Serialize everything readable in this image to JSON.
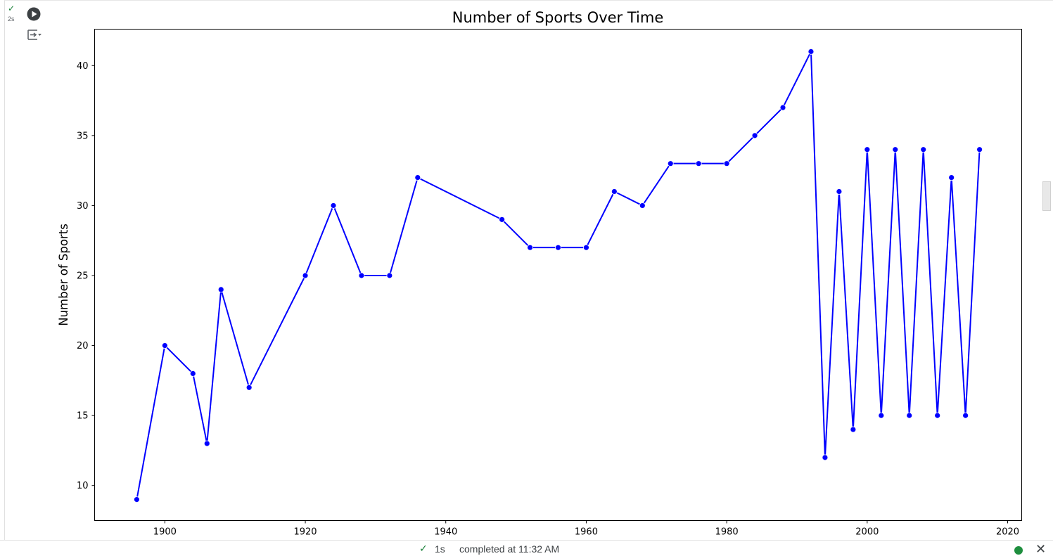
{
  "cell": {
    "exec_check_icon": "checkmark-icon",
    "exec_time": "2s",
    "run_icon": "play-circle-icon",
    "output_toggle_icon": "output-toggle-icon"
  },
  "status_bar": {
    "duration": "1s",
    "message": "completed at 11:32 AM",
    "connected_color": "#1e8e3e"
  },
  "chart_data": {
    "type": "line",
    "title": "Number of Sports Over Time",
    "xlabel": "",
    "ylabel": "Number of Sports",
    "xlim": [
      1890,
      2022
    ],
    "ylim": [
      7.5,
      42.6
    ],
    "xticks": [
      1900,
      1920,
      1940,
      1960,
      1980,
      2000,
      2020
    ],
    "yticks": [
      10,
      15,
      20,
      25,
      30,
      35,
      40
    ],
    "grid": false,
    "line_color": "#0000ff",
    "series": [
      {
        "x": [
          1896,
          1900,
          1904,
          1906,
          1908,
          1912,
          1920,
          1924,
          1928,
          1932,
          1936,
          1948,
          1952,
          1956,
          1960,
          1964,
          1968,
          1972,
          1976,
          1980,
          1984,
          1988,
          1992,
          1994,
          1996,
          1998,
          2000,
          2002,
          2004,
          2006,
          2008,
          2010,
          2012,
          2014,
          2016
        ],
        "values": [
          9,
          20,
          18,
          13,
          24,
          17,
          25,
          30,
          25,
          25,
          32,
          29,
          27,
          27,
          27,
          31,
          30,
          33,
          33,
          33,
          35,
          37,
          41,
          12,
          31,
          14,
          34,
          15,
          34,
          15,
          34,
          15,
          32,
          15,
          34
        ]
      }
    ]
  }
}
